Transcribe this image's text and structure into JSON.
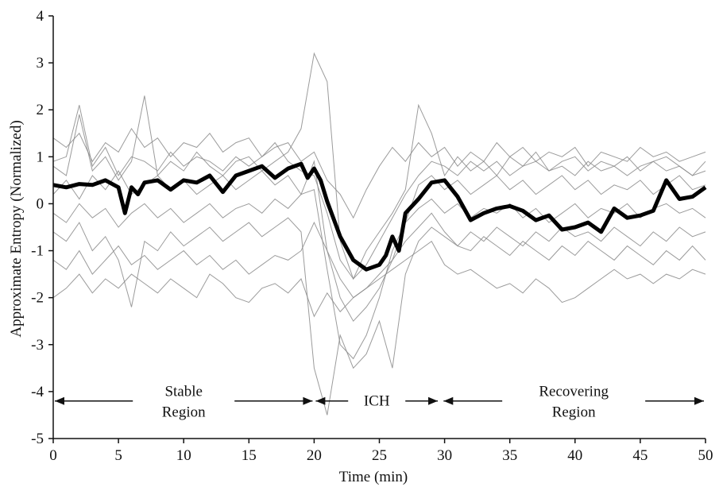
{
  "chart_data": {
    "type": "line",
    "xlabel": "Time (min)",
    "ylabel": "Approximate Entropy (Normalized)",
    "xlim": [
      0,
      50
    ],
    "ylim": [
      -5,
      4
    ],
    "xticks": [
      "0",
      "5",
      "10",
      "15",
      "20",
      "25",
      "30",
      "35",
      "40",
      "45",
      "50"
    ],
    "yticks": [
      "4",
      "3",
      "2",
      "1",
      "0",
      "-1",
      "-2",
      "-3",
      "-4",
      "-5"
    ],
    "grid": false,
    "legend": "none",
    "annotations": {
      "stable": [
        "Stable",
        "Region"
      ],
      "ich": [
        "ICH"
      ],
      "recovering": [
        "Recovering",
        "Region"
      ]
    },
    "phase_spans": [
      {
        "from": 0,
        "to": 20
      },
      {
        "from": 20,
        "to": 29.6
      },
      {
        "from": 29.8,
        "to": 50
      }
    ],
    "colors": {
      "mean": "#000000",
      "individual": "#8a8a8a",
      "axis": "#111111"
    },
    "series": [
      {
        "role": "mean",
        "x": [
          0,
          1,
          2,
          3,
          4,
          5,
          5.5,
          6,
          6.5,
          7,
          8,
          9,
          10,
          11,
          12,
          13,
          14,
          15,
          16,
          17,
          18,
          19,
          19.5,
          20,
          20.5,
          21,
          22,
          23,
          24,
          25,
          25.5,
          26,
          26.5,
          27,
          28,
          29,
          30,
          31,
          32,
          33,
          34,
          35,
          36,
          37,
          38,
          39,
          40,
          41,
          42,
          43,
          44,
          45,
          46,
          47,
          48,
          49,
          50
        ],
        "y": [
          0.4,
          0.35,
          0.42,
          0.4,
          0.5,
          0.35,
          -0.2,
          0.35,
          0.2,
          0.45,
          0.5,
          0.3,
          0.5,
          0.45,
          0.6,
          0.25,
          0.6,
          0.7,
          0.8,
          0.55,
          0.75,
          0.85,
          0.55,
          0.75,
          0.5,
          0.05,
          -0.7,
          -1.2,
          -1.4,
          -1.3,
          -1.1,
          -0.7,
          -1.0,
          -0.2,
          0.1,
          0.45,
          0.5,
          0.15,
          -0.35,
          -0.2,
          -0.1,
          -0.05,
          -0.15,
          -0.35,
          -0.25,
          -0.55,
          -0.5,
          -0.4,
          -0.6,
          -0.1,
          -0.3,
          -0.25,
          -0.15,
          0.5,
          0.1,
          0.15,
          0.35
        ]
      },
      {
        "role": "individual",
        "x": [
          0,
          1,
          2,
          3,
          4,
          5,
          6,
          7,
          8,
          9,
          10,
          11,
          12,
          13,
          14,
          15,
          16,
          17,
          18,
          19,
          20,
          21,
          22,
          23,
          24,
          25,
          26,
          27,
          28,
          29,
          30,
          31,
          32,
          33,
          34,
          35,
          36,
          37,
          38,
          39,
          40,
          41,
          42,
          43,
          44,
          45,
          46,
          47,
          48,
          49,
          50
        ],
        "y": [
          1.4,
          1.2,
          1.5,
          0.9,
          1.3,
          1.1,
          1.6,
          1.2,
          1.4,
          1.0,
          1.3,
          1.2,
          1.5,
          1.1,
          1.3,
          1.4,
          1.0,
          1.2,
          1.3,
          0.9,
          1.1,
          0.5,
          0.2,
          -0.3,
          0.3,
          0.8,
          1.2,
          0.9,
          1.3,
          1.0,
          1.2,
          0.8,
          1.1,
          0.9,
          1.3,
          1.0,
          1.2,
          0.9,
          1.1,
          1.0,
          1.2,
          0.8,
          1.1,
          1.0,
          0.9,
          1.2,
          1.0,
          1.1,
          0.9,
          1.0,
          1.1
        ]
      },
      {
        "role": "individual",
        "x": [
          0,
          1,
          2,
          3,
          4,
          5,
          6,
          7,
          8,
          9,
          10,
          11,
          12,
          13,
          14,
          15,
          16,
          17,
          18,
          19,
          20,
          21,
          22,
          23,
          24,
          25,
          26,
          27,
          28,
          29,
          30,
          31,
          32,
          33,
          34,
          35,
          36,
          37,
          38,
          39,
          40,
          41,
          42,
          43,
          44,
          45,
          46,
          47,
          48,
          49,
          50
        ],
        "y": [
          0.8,
          0.6,
          1.9,
          0.7,
          1.0,
          0.5,
          0.9,
          2.3,
          0.6,
          0.9,
          0.7,
          1.1,
          0.8,
          0.6,
          0.9,
          1.0,
          0.7,
          0.9,
          1.1,
          1.6,
          3.2,
          2.6,
          -0.8,
          -1.6,
          -1.0,
          -0.6,
          -0.2,
          0.3,
          2.1,
          1.5,
          0.6,
          1.0,
          0.7,
          0.9,
          0.6,
          1.0,
          0.8,
          1.1,
          0.7,
          0.9,
          1.0,
          0.7,
          0.9,
          0.8,
          1.0,
          0.7,
          0.9,
          1.0,
          0.8,
          0.6,
          0.9
        ]
      },
      {
        "role": "individual",
        "x": [
          0,
          1,
          2,
          3,
          4,
          5,
          6,
          7,
          8,
          9,
          10,
          11,
          12,
          13,
          14,
          15,
          16,
          17,
          18,
          19,
          20,
          21,
          22,
          23,
          24,
          25,
          26,
          27,
          28,
          29,
          30,
          31,
          32,
          33,
          34,
          35,
          36,
          37,
          38,
          39,
          40,
          41,
          42,
          43,
          44,
          45,
          46,
          47,
          48,
          49,
          50
        ],
        "y": [
          0.2,
          0.5,
          0.1,
          0.6,
          0.3,
          0.7,
          0.2,
          0.4,
          0.6,
          0.3,
          0.5,
          0.2,
          0.4,
          0.6,
          0.3,
          0.5,
          0.7,
          0.4,
          0.6,
          0.2,
          0.9,
          -1.0,
          -2.0,
          -2.5,
          -2.2,
          -1.8,
          -1.2,
          -0.4,
          0.4,
          0.6,
          0.3,
          0.5,
          0.2,
          0.4,
          0.6,
          0.3,
          0.5,
          0.2,
          0.4,
          0.6,
          0.3,
          0.5,
          0.2,
          0.4,
          0.3,
          0.5,
          0.2,
          0.4,
          0.6,
          0.3,
          0.4
        ]
      },
      {
        "role": "individual",
        "x": [
          0,
          1,
          2,
          3,
          4,
          5,
          6,
          7,
          8,
          9,
          10,
          11,
          12,
          13,
          14,
          15,
          16,
          17,
          18,
          19,
          20,
          21,
          22,
          23,
          24,
          25,
          26,
          27,
          28,
          29,
          30,
          31,
          32,
          33,
          34,
          35,
          36,
          37,
          38,
          39,
          40,
          41,
          42,
          43,
          44,
          45,
          46,
          47,
          48,
          49,
          50
        ],
        "y": [
          -0.2,
          -0.4,
          0.0,
          -0.3,
          -0.1,
          -0.5,
          -0.2,
          0.0,
          -0.3,
          -0.1,
          -0.4,
          -0.2,
          0.0,
          -0.3,
          -0.1,
          0.0,
          -0.2,
          0.1,
          -0.1,
          0.2,
          0.3,
          -1.4,
          -3.0,
          -3.3,
          -2.8,
          -2.0,
          -1.0,
          -0.4,
          -0.1,
          0.1,
          -0.2,
          0.0,
          -0.3,
          -0.1,
          -0.2,
          0.0,
          -0.3,
          -0.1,
          -0.4,
          -0.2,
          0.0,
          -0.3,
          -0.1,
          -0.2,
          0.0,
          -0.3,
          -0.1,
          0.0,
          -0.2,
          -0.1,
          -0.3
        ]
      },
      {
        "role": "individual",
        "x": [
          0,
          1,
          2,
          3,
          4,
          5,
          6,
          7,
          8,
          9,
          10,
          11,
          12,
          13,
          14,
          15,
          16,
          17,
          18,
          19,
          20,
          21,
          22,
          23,
          24,
          25,
          26,
          27,
          28,
          29,
          30,
          31,
          32,
          33,
          34,
          35,
          36,
          37,
          38,
          39,
          40,
          41,
          42,
          43,
          44,
          45,
          46,
          47,
          48,
          49,
          50
        ],
        "y": [
          -0.6,
          -0.8,
          -0.4,
          -1.0,
          -0.7,
          -1.2,
          -2.2,
          -0.8,
          -1.0,
          -0.6,
          -0.9,
          -0.7,
          -0.5,
          -0.8,
          -0.6,
          -0.4,
          -0.7,
          -0.5,
          -0.3,
          -0.6,
          -3.5,
          -4.5,
          -2.8,
          -3.5,
          -3.2,
          -2.5,
          -3.5,
          -1.5,
          -0.8,
          -0.5,
          -0.7,
          -0.9,
          -0.6,
          -0.8,
          -0.5,
          -0.7,
          -0.9,
          -0.6,
          -0.8,
          -0.5,
          -0.7,
          -0.6,
          -0.8,
          -0.5,
          -0.7,
          -0.9,
          -0.6,
          -0.8,
          -0.5,
          -0.7,
          -0.6
        ]
      },
      {
        "role": "individual",
        "x": [
          0,
          1,
          2,
          3,
          4,
          5,
          6,
          7,
          8,
          9,
          10,
          11,
          12,
          13,
          14,
          15,
          16,
          17,
          18,
          19,
          20,
          21,
          22,
          23,
          24,
          25,
          26,
          27,
          28,
          29,
          30,
          31,
          32,
          33,
          34,
          35,
          36,
          37,
          38,
          39,
          40,
          41,
          42,
          43,
          44,
          45,
          46,
          47,
          48,
          49,
          50
        ],
        "y": [
          -1.2,
          -1.4,
          -1.0,
          -1.5,
          -1.2,
          -0.9,
          -1.3,
          -1.1,
          -1.4,
          -1.2,
          -1.0,
          -1.3,
          -1.1,
          -1.4,
          -1.2,
          -1.5,
          -1.3,
          -1.1,
          -1.2,
          -1.0,
          -0.4,
          -1.0,
          -1.6,
          -2.0,
          -1.8,
          -1.5,
          -1.2,
          -0.8,
          -0.5,
          -0.2,
          -0.6,
          -0.9,
          -1.0,
          -0.7,
          -0.9,
          -1.1,
          -0.8,
          -1.0,
          -1.2,
          -0.9,
          -1.1,
          -0.8,
          -1.0,
          -1.2,
          -0.9,
          -1.1,
          -1.3,
          -1.0,
          -1.2,
          -0.9,
          -1.2
        ]
      },
      {
        "role": "individual",
        "x": [
          0,
          1,
          2,
          3,
          4,
          5,
          6,
          7,
          8,
          9,
          10,
          11,
          12,
          13,
          14,
          15,
          16,
          17,
          18,
          19,
          20,
          21,
          22,
          23,
          24,
          25,
          26,
          27,
          28,
          29,
          30,
          31,
          32,
          33,
          34,
          35,
          36,
          37,
          38,
          39,
          40,
          41,
          42,
          43,
          44,
          45,
          46,
          47,
          48,
          49,
          50
        ],
        "y": [
          -2.0,
          -1.8,
          -1.5,
          -1.9,
          -1.6,
          -1.8,
          -1.5,
          -1.7,
          -1.9,
          -1.6,
          -1.8,
          -2.0,
          -1.5,
          -1.7,
          -2.0,
          -2.1,
          -1.8,
          -1.7,
          -1.9,
          -1.6,
          -2.4,
          -1.9,
          -2.3,
          -2.0,
          -1.8,
          -1.6,
          -1.4,
          -1.2,
          -1.0,
          -0.8,
          -1.3,
          -1.5,
          -1.4,
          -1.6,
          -1.8,
          -1.7,
          -1.9,
          -1.6,
          -1.8,
          -2.1,
          -2.0,
          -1.8,
          -1.6,
          -1.4,
          -1.6,
          -1.5,
          -1.7,
          -1.5,
          -1.6,
          -1.4,
          -1.5
        ]
      },
      {
        "role": "individual",
        "x": [
          0,
          1,
          2,
          3,
          4,
          5,
          6,
          7,
          8,
          9,
          10,
          11,
          12,
          13,
          14,
          15,
          16,
          17,
          18,
          19,
          20,
          21,
          22,
          23,
          24,
          25,
          26,
          27,
          28,
          29,
          30,
          31,
          32,
          33,
          34,
          35,
          36,
          37,
          38,
          39,
          40,
          41,
          42,
          43,
          44,
          45,
          46,
          47,
          48,
          49,
          50
        ],
        "y": [
          0.9,
          1.0,
          2.1,
          0.8,
          1.2,
          0.6,
          1.0,
          0.9,
          0.7,
          1.1,
          0.8,
          1.0,
          0.9,
          0.7,
          1.0,
          0.8,
          1.0,
          1.3,
          0.9,
          0.7,
          0.6,
          -0.2,
          -1.2,
          -1.6,
          -1.3,
          -0.8,
          -0.3,
          0.2,
          0.6,
          0.9,
          0.8,
          0.6,
          0.9,
          0.7,
          0.9,
          0.6,
          0.8,
          0.9,
          0.7,
          0.8,
          0.6,
          0.9,
          0.7,
          0.8,
          0.6,
          0.8,
          0.9,
          0.7,
          0.8,
          0.6,
          0.7
        ]
      }
    ]
  }
}
